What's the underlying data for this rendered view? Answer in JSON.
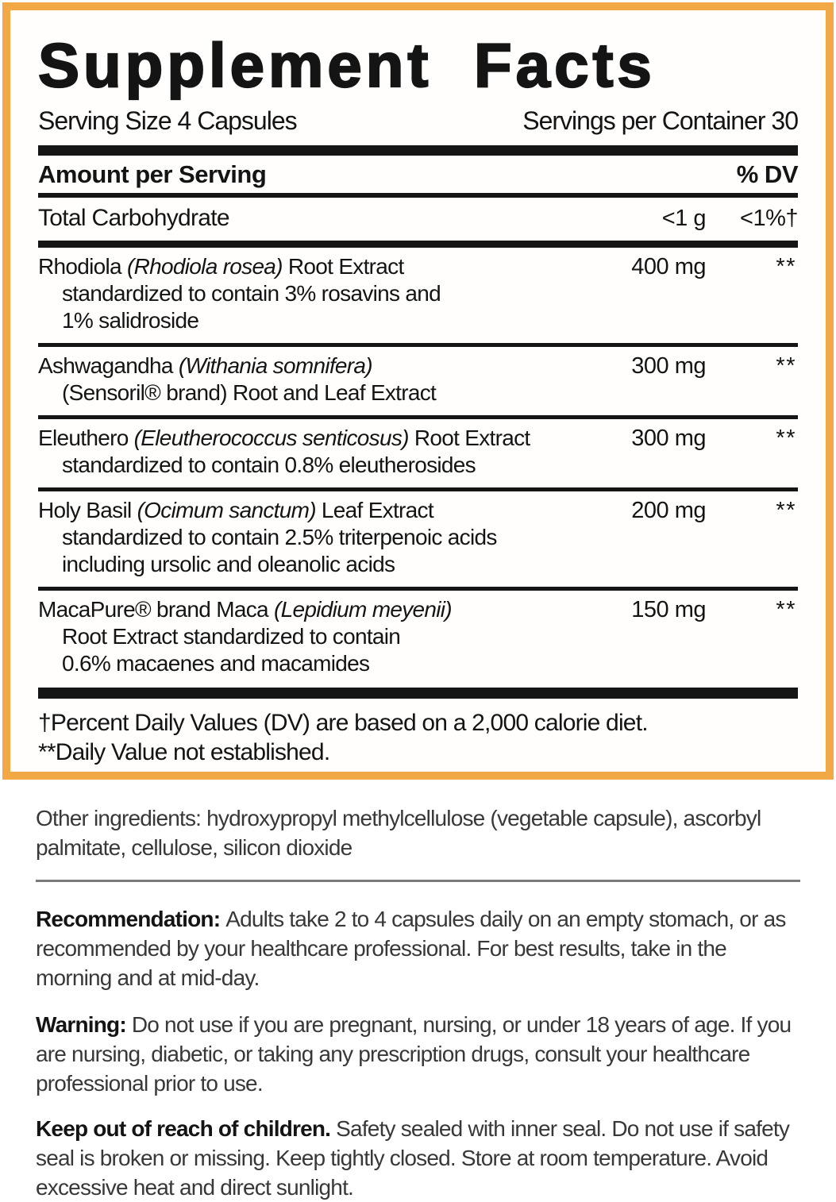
{
  "colors": {
    "border_orange": "#F2A845",
    "bar_black": "#151515",
    "rule_gray": "#7A7A7A"
  },
  "panel": {
    "title": "Supplement Facts",
    "serving_size": "Serving Size 4 Capsules",
    "servings_per_container": "Servings per Container 30",
    "amount_header": "Amount per Serving",
    "dv_header": "% DV",
    "carb": {
      "name": "Total Carbohydrate",
      "amount": "<1 g",
      "dv": "<1%†"
    },
    "ingredients": [
      {
        "pre": "Rhodiola ",
        "italic": "(Rhodiola rosea)",
        "post": " Root Extract",
        "amount": "400 mg",
        "dv": "**",
        "details": [
          "standardized to contain 3% rosavins and",
          "1% salidroside"
        ]
      },
      {
        "pre": "Ashwagandha ",
        "italic": "(Withania somnifera)",
        "post": "",
        "amount": "300 mg",
        "dv": "**",
        "details": [
          "(Sensoril® brand) Root and Leaf Extract"
        ]
      },
      {
        "pre": "Eleuthero ",
        "italic": "(Eleutherococcus senticosus)",
        "post": " Root Extract",
        "amount": "300 mg",
        "dv": "**",
        "details": [
          "standardized to contain 0.8% eleutherosides"
        ]
      },
      {
        "pre": "Holy Basil ",
        "italic": "(Ocimum sanctum)",
        "post": " Leaf Extract",
        "amount": "200 mg",
        "dv": "**",
        "details": [
          "standardized to contain 2.5% triterpenoic acids",
          "including ursolic and oleanolic acids"
        ]
      },
      {
        "pre": "MacaPure® brand Maca ",
        "italic": "(Lepidium meyenii)",
        "post": "",
        "amount": "150 mg",
        "dv": "**",
        "details": [
          "Root Extract standardized to contain",
          "0.6% macaenes and macamides"
        ]
      }
    ],
    "footnote_1": "†Percent Daily Values (DV) are based on a 2,000 calorie diet.",
    "footnote_2": "**Daily Value not established."
  },
  "info": {
    "other_ingredients": "Other ingredients: hydroxypropyl methylcellulose (vegetable capsule), ascorbyl palmitate, cellulose, silicon dioxide",
    "recommendation_label": "Recommendation:",
    "recommendation_text": "Adults take 2 to 4 capsules daily on an empty stomach, or as recommended by your healthcare professional. For best results, take in the morning and at mid-day.",
    "warning_label": "Warning:",
    "warning_text": "Do not use if you are pregnant, nursing, or under 18 years of age. If you are nursing, diabetic, or taking any prescription drugs, consult your healthcare professional prior to use.",
    "children_label": "Keep out of reach of children.",
    "children_text": "Safety sealed with inner seal. Do not use if safety seal is broken or missing. Keep tightly closed. Store at room temperature. Avoid excessive heat and direct sunlight."
  }
}
